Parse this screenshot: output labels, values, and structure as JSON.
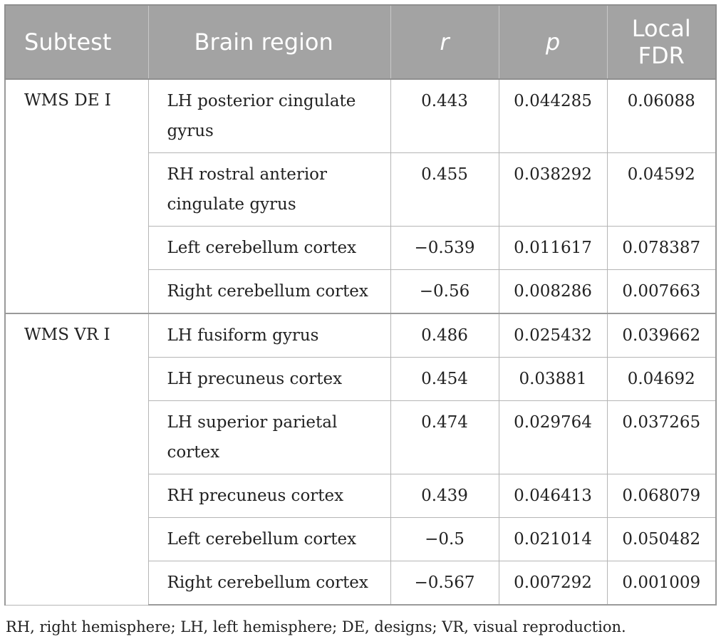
{
  "table": {
    "headers": {
      "subtest": "Subtest",
      "region": "Brain region",
      "r": "r",
      "p": "p",
      "fdr": "Local FDR"
    },
    "groups": [
      {
        "subtest": "WMS DE I",
        "rows": [
          {
            "region": "LH posterior cingulate gyrus",
            "r": "0.443",
            "p": "0.044285",
            "fdr": "0.06088"
          },
          {
            "region": "RH rostral anterior cingulate gyrus",
            "r": "0.455",
            "p": "0.038292",
            "fdr": "0.04592"
          },
          {
            "region": "Left cerebellum cortex",
            "r": "−0.539",
            "p": "0.011617",
            "fdr": "0.078387"
          },
          {
            "region": "Right cerebellum cortex",
            "r": "−0.56",
            "p": "0.008286",
            "fdr": "0.007663"
          }
        ]
      },
      {
        "subtest": "WMS VR I",
        "rows": [
          {
            "region": "LH fusiform gyrus",
            "r": "0.486",
            "p": "0.025432",
            "fdr": "0.039662"
          },
          {
            "region": "LH precuneus cortex",
            "r": "0.454",
            "p": "0.03881",
            "fdr": "0.04692"
          },
          {
            "region": "LH superior parietal cortex",
            "r": "0.474",
            "p": "0.029764",
            "fdr": "0.037265"
          },
          {
            "region": "RH precuneus cortex",
            "r": "0.439",
            "p": "0.046413",
            "fdr": "0.068079"
          },
          {
            "region": "Left cerebellum cortex",
            "r": "−0.5",
            "p": "0.021014",
            "fdr": "0.050482"
          },
          {
            "region": "Right cerebellum cortex",
            "r": "−0.567",
            "p": "0.007292",
            "fdr": "0.001009"
          }
        ]
      }
    ]
  },
  "footnote": "RH, right hemisphere; LH, left hemisphere; DE, designs; VR, visual reproduction.",
  "colors": {
    "header_bg": "#a3a3a3",
    "header_text": "#ffffff",
    "border": "#b5b5b5"
  }
}
